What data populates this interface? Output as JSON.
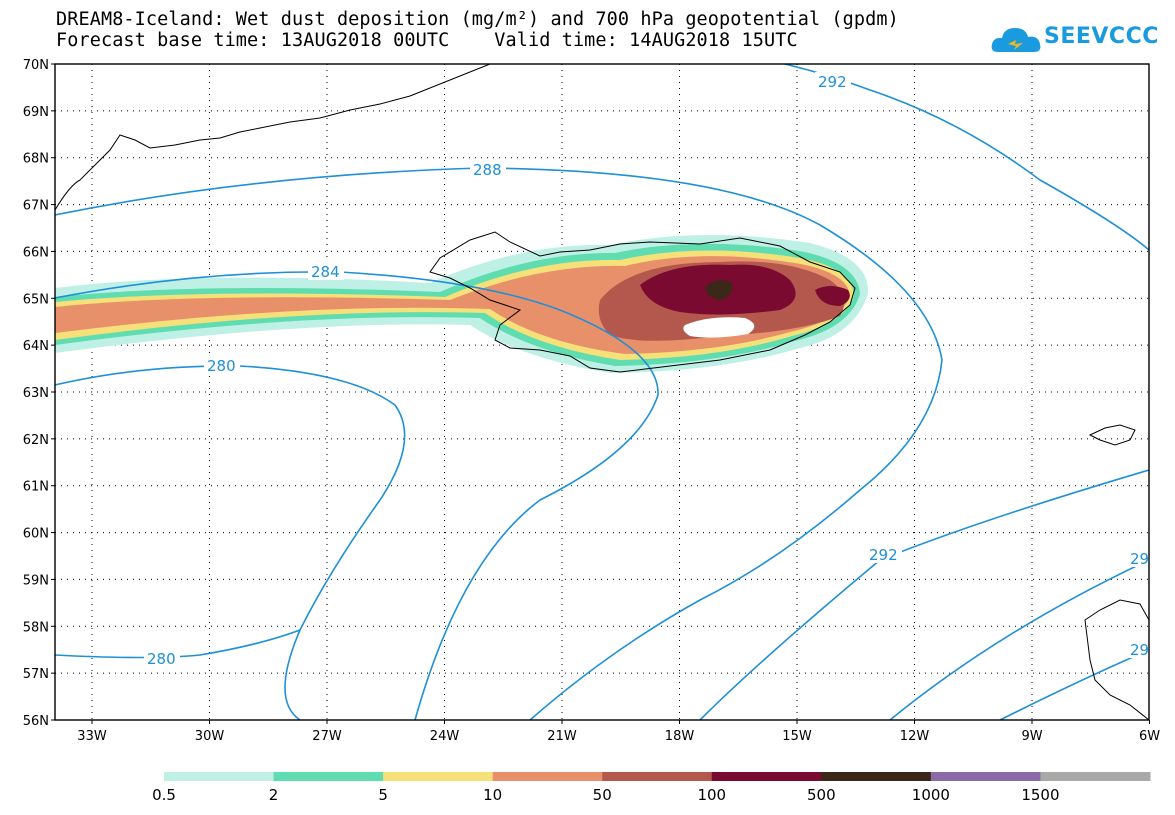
{
  "title": {
    "line1": "DREAM8-Iceland: Wet dust deposition (mg/m²) and 700 hPa geopotential (gpdm)",
    "line2": "Forecast base time: 13AUG2018 00UTC    Valid time: 14AUG2018 15UTC"
  },
  "logo": {
    "text": "SEEVCCC",
    "icon": "cloud-icon",
    "color": "#1a9be0"
  },
  "map": {
    "lat_ticks": [
      "70N",
      "69N",
      "68N",
      "67N",
      "66N",
      "65N",
      "64N",
      "63N",
      "62N",
      "61N",
      "60N",
      "59N",
      "58N",
      "57N",
      "56N"
    ],
    "lon_ticks": [
      "33W",
      "30W",
      "27W",
      "24W",
      "21W",
      "18W",
      "15W",
      "12W",
      "9W",
      "6W"
    ],
    "contour_color": "#1e90d8",
    "contour_labels": [
      "292",
      "288",
      "284",
      "280",
      "280",
      "292",
      "29",
      "29"
    ]
  },
  "legend": {
    "colors": [
      "#bff0e6",
      "#5fdcb0",
      "#f5e07a",
      "#e8906a",
      "#b4584e",
      "#7a0a30",
      "#3c2818",
      "#8a6aa6",
      "#a8a8a8"
    ],
    "labels": [
      "0.5",
      "2",
      "5",
      "10",
      "50",
      "100",
      "500",
      "1000",
      "1500"
    ]
  }
}
